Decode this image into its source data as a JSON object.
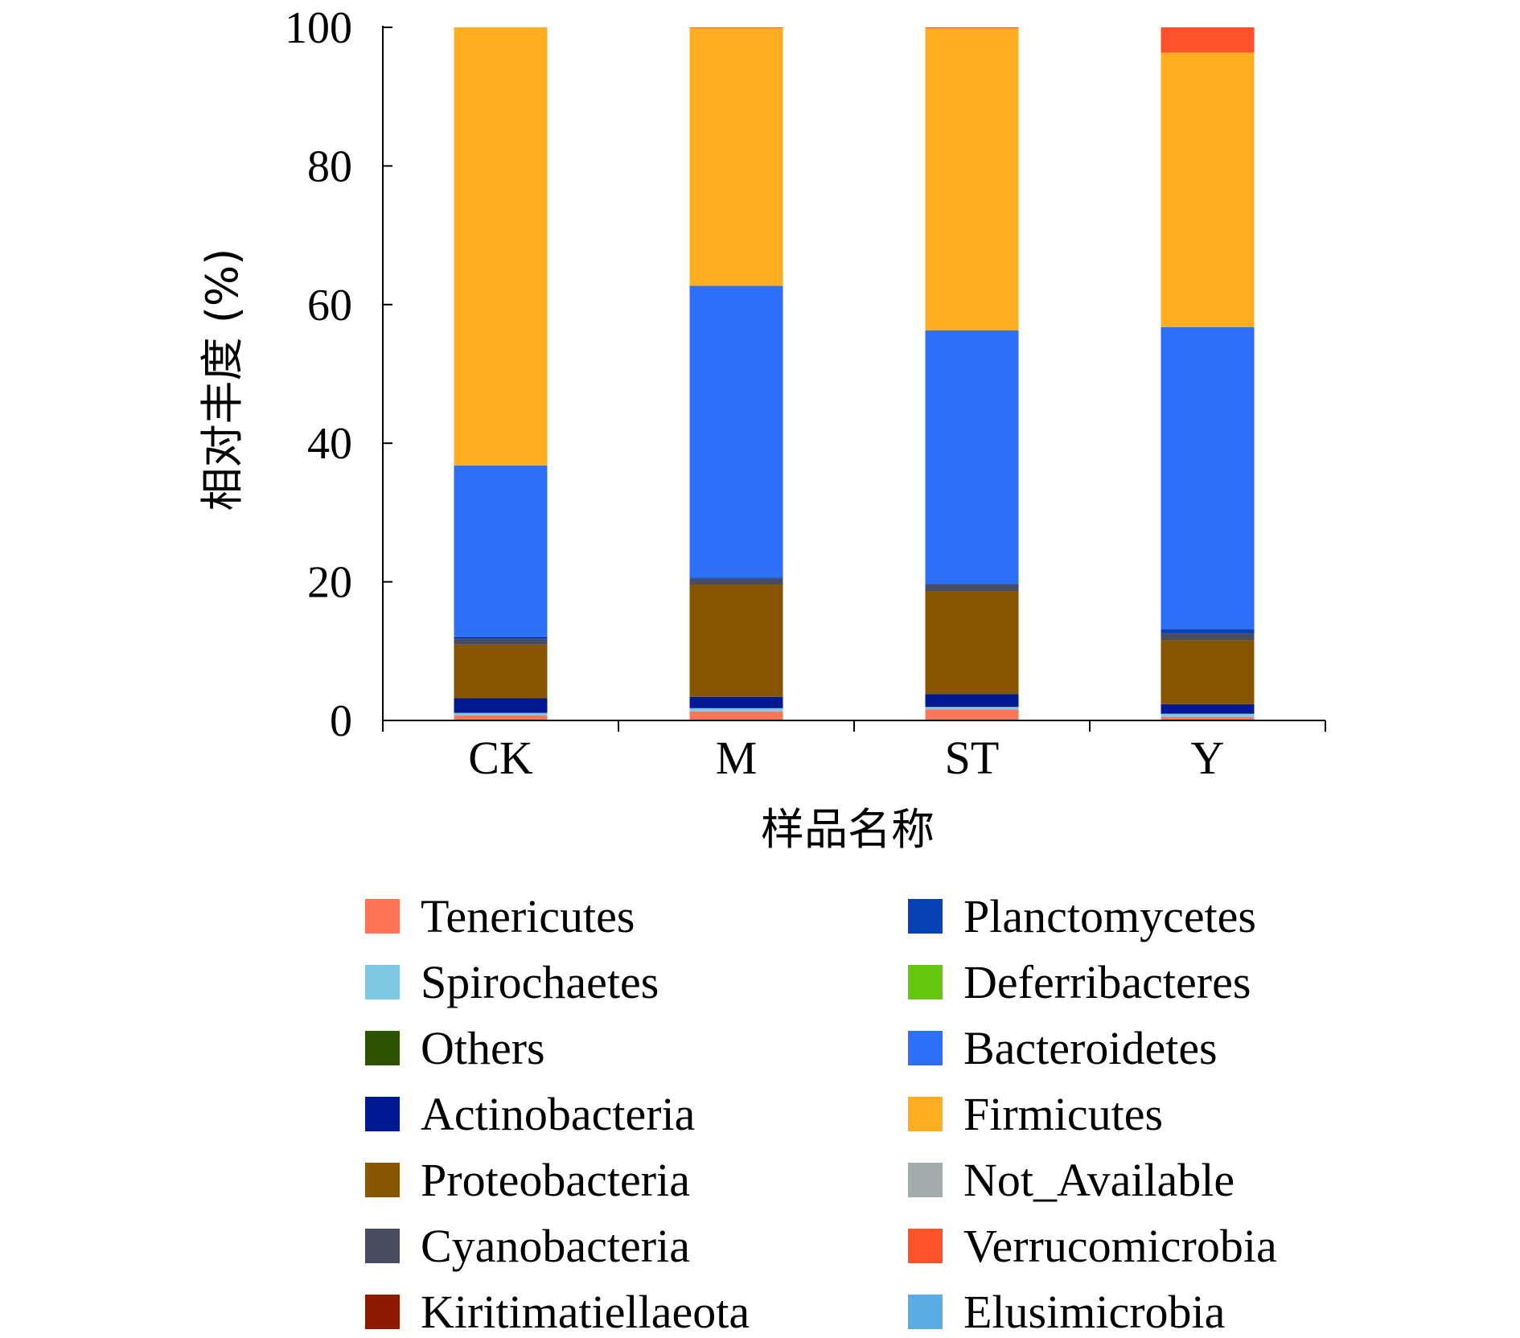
{
  "chart_data": {
    "type": "bar",
    "stacked": true,
    "xlabel": "样品名称",
    "ylabel": "相对丰度 (%)",
    "ylim": [
      0,
      100
    ],
    "yticks": [
      "0",
      "20",
      "40",
      "60",
      "80",
      "100"
    ],
    "categories": [
      "CK",
      "M",
      "ST",
      "Y"
    ],
    "legend_position": "bottom",
    "series": [
      {
        "name": "Tenericutes",
        "color": "#ff7557",
        "values": [
          0.74,
          1.3,
          1.6,
          0.5
        ]
      },
      {
        "name": "Spirochaetes",
        "color": "#7ec8e3",
        "values": [
          0.35,
          0.47,
          0.35,
          0.47
        ]
      },
      {
        "name": "Others",
        "color": "#2d5200",
        "values": [
          0,
          0,
          0,
          0
        ]
      },
      {
        "name": "Actinobacteria",
        "color": "#001891",
        "values": [
          2.1,
          1.63,
          1.86,
          1.36
        ]
      },
      {
        "name": "Proteobacteria",
        "color": "#875400",
        "values": [
          7.75,
          16.2,
          14.8,
          9.2
        ]
      },
      {
        "name": "Cyanobacteria",
        "color": "#474c5f",
        "values": [
          0.85,
          0.85,
          1.0,
          1.05
        ]
      },
      {
        "name": "Kiritimatiellaeota",
        "color": "#8b1a00",
        "values": [
          0,
          0,
          0,
          0
        ]
      },
      {
        "name": "Planctomycetes",
        "color": "#0a40b5",
        "values": [
          0.3,
          0.15,
          0.05,
          0.58
        ]
      },
      {
        "name": "Deferribacteres",
        "color": "#66c80e",
        "values": [
          0,
          0,
          0,
          0
        ]
      },
      {
        "name": "Bacteroidetes",
        "color": "#2e6ff8",
        "values": [
          24.7,
          42.1,
          36.6,
          43.6
        ]
      },
      {
        "name": "Firmicutes",
        "color": "#ffad21",
        "values": [
          63.2,
          37.2,
          43.6,
          39.6
        ]
      },
      {
        "name": "Not_Available",
        "color": "#a3acab",
        "values": [
          0,
          0,
          0,
          0
        ]
      },
      {
        "name": "Verrucomicrobia",
        "color": "#ff512a",
        "values": [
          0.01,
          0.1,
          0.14,
          3.64
        ]
      },
      {
        "name": "Elusimicrobia",
        "color": "#5aade4",
        "values": [
          0,
          0,
          0,
          0
        ]
      }
    ]
  }
}
